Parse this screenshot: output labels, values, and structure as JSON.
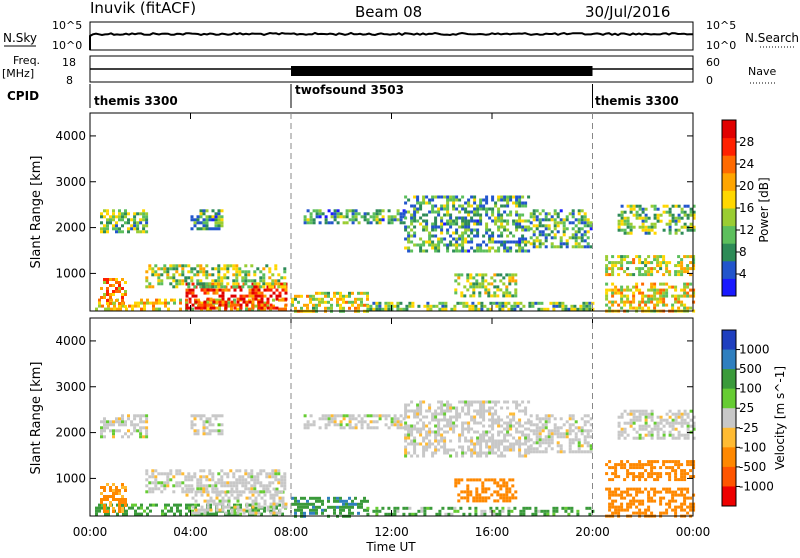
{
  "header": {
    "station": "Inuvik (fitACF)",
    "beam": "Beam 08",
    "date": "30/Jul/2016"
  },
  "top_panels": {
    "nsky_label": "N.Sky",
    "nsky_ticks": [
      "10^5",
      "10^0"
    ],
    "nsearch_label": "N.Search",
    "nsearch_ticks": [
      "10^5",
      "10^0"
    ],
    "freq_label": "Freq.",
    "freq_unit": "[MHz]",
    "freq_ticks": [
      "18",
      "8"
    ],
    "nave_label": "Nave",
    "nave_ticks": [
      "60",
      "0"
    ],
    "cpid_label": "CPID",
    "cpid_segments": [
      {
        "name": "themis 3300",
        "start_hour": 0,
        "end_hour": 8
      },
      {
        "name": "twofsound 3503",
        "start_hour": 8,
        "end_hour": 20
      },
      {
        "name": "themis 3300",
        "start_hour": 20,
        "end_hour": 24
      }
    ]
  },
  "axes": {
    "time_label": "Time UT",
    "time_ticks": [
      "00:00",
      "04:00",
      "08:00",
      "12:00",
      "16:00",
      "20:00",
      "00:00"
    ],
    "range_label": "Slant Range [km]",
    "range_ticks": [
      "1000",
      "2000",
      "3000",
      "4000"
    ]
  },
  "power_colorbar": {
    "label": "Power [dB]",
    "ticks": [
      "4",
      "8",
      "12",
      "16",
      "20",
      "24",
      "28"
    ],
    "colors": [
      "#1a1aff",
      "#2255cc",
      "#2d8b57",
      "#5cbf5c",
      "#9acd32",
      "#ffd700",
      "#ffa500",
      "#ff6a00",
      "#ff2000",
      "#e00000"
    ]
  },
  "velocity_colorbar": {
    "label": "Velocity [m s^-1]",
    "ticks": [
      "1000",
      "500",
      "100",
      "25",
      "-25",
      "-100",
      "-500",
      "-1000"
    ],
    "colors": [
      "#1f3fbf",
      "#2f7fbf",
      "#3a9a3a",
      "#66cc33",
      "#c8c8c8",
      "#ffbb33",
      "#ff8800",
      "#ff5500",
      "#ee0000"
    ]
  },
  "chart_data": {
    "type": "heatmap",
    "title": "Inuvik (fitACF) Beam 08 30/Jul/2016",
    "xlabel": "Time UT",
    "ylabel": "Slant Range [km]",
    "xlim_hours": [
      0,
      24
    ],
    "ylim_km": [
      180,
      4500
    ],
    "panels": [
      "Power [dB]",
      "Velocity [m s^-1]"
    ],
    "scatter_regions": [
      {
        "t0": 0.2,
        "t1": 7.8,
        "r0": 200,
        "r1": 450,
        "power_db": 18,
        "velocity": 60
      },
      {
        "t0": 3.8,
        "t1": 7.8,
        "r0": 250,
        "r1": 800,
        "power_db": 28,
        "velocity": 0
      },
      {
        "t0": 2.2,
        "t1": 7.8,
        "r0": 700,
        "r1": 1200,
        "power_db": 14,
        "velocity": 0
      },
      {
        "t0": 0.4,
        "t1": 1.4,
        "r0": 250,
        "r1": 900,
        "power_db": 22,
        "velocity": -120
      },
      {
        "t0": 0.4,
        "t1": 2.2,
        "r0": 1900,
        "r1": 2400,
        "power_db": 12,
        "velocity": 0
      },
      {
        "t0": 4.0,
        "t1": 5.3,
        "r0": 2000,
        "r1": 2400,
        "power_db": 10,
        "velocity": 0
      },
      {
        "t0": 8.0,
        "t1": 11.0,
        "r0": 200,
        "r1": 600,
        "power_db": 16,
        "velocity": 80
      },
      {
        "t0": 11.0,
        "t1": 20.0,
        "r0": 200,
        "r1": 380,
        "power_db": 12,
        "velocity": 50
      },
      {
        "t0": 8.5,
        "t1": 12.5,
        "r0": 2100,
        "r1": 2400,
        "power_db": 10,
        "velocity": 0
      },
      {
        "t0": 12.5,
        "t1": 17.5,
        "r0": 1500,
        "r1": 2700,
        "power_db": 10,
        "velocity": 0
      },
      {
        "t0": 14.5,
        "t1": 17.0,
        "r0": 500,
        "r1": 1000,
        "power_db": 14,
        "velocity": -300
      },
      {
        "t0": 17.5,
        "t1": 20.0,
        "r0": 1600,
        "r1": 2400,
        "power_db": 10,
        "velocity": 0
      },
      {
        "t0": 20.5,
        "t1": 24.0,
        "r0": 200,
        "r1": 800,
        "power_db": 18,
        "velocity": -250
      },
      {
        "t0": 20.5,
        "t1": 24.0,
        "r0": 1000,
        "r1": 1400,
        "power_db": 16,
        "velocity": -400
      },
      {
        "t0": 21.0,
        "t1": 24.0,
        "r0": 1900,
        "r1": 2500,
        "power_db": 12,
        "velocity": 0
      }
    ]
  }
}
